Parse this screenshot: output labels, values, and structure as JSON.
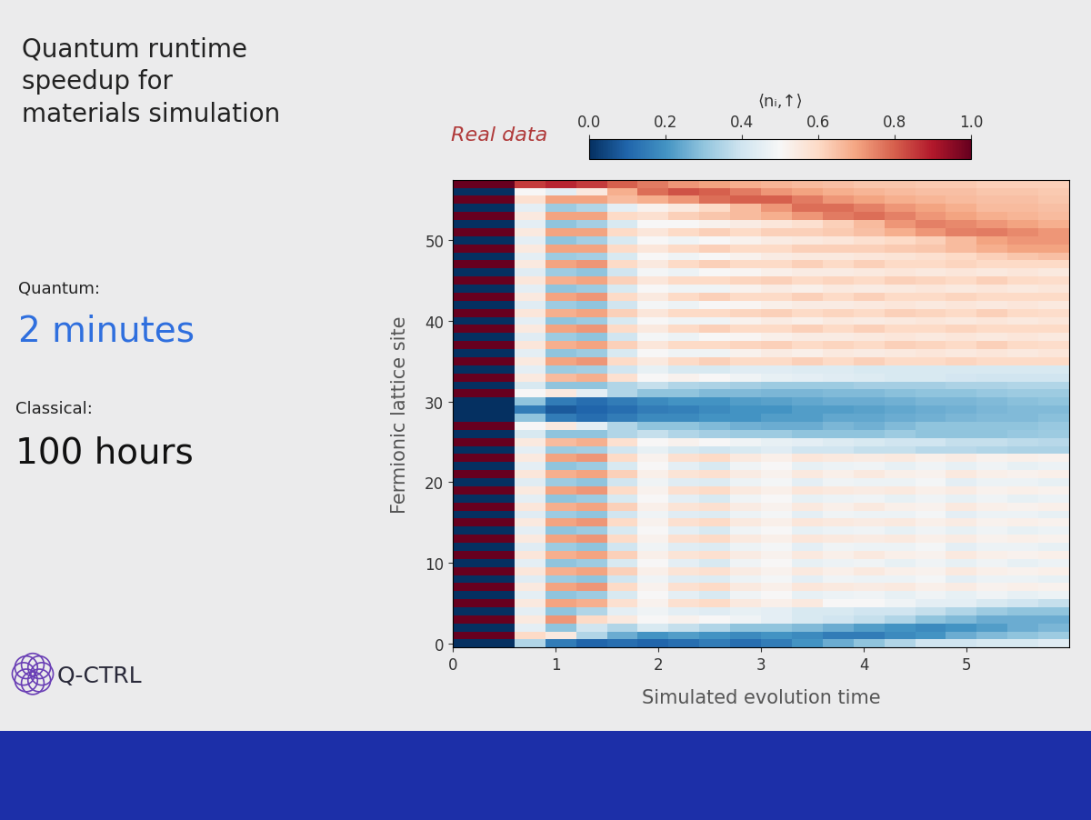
{
  "slide": {
    "title": "Quantum runtime\nspeedup for\nmaterials simulation",
    "quantum_label": "Quantum:",
    "quantum_value": "2 minutes",
    "classical_label": "Classical:",
    "classical_value": "100 hours",
    "logo": "Q-CTRL"
  },
  "chart_data": {
    "type": "heatmap",
    "annotation": "Real data",
    "x_label": "Simulated evolution time",
    "y_label": "Fermionic lattice site",
    "x": [
      0.15,
      0.45,
      0.75,
      1.05,
      1.35,
      1.65,
      1.95,
      2.25,
      2.55,
      2.85,
      3.15,
      3.45,
      3.75,
      4.05,
      4.35,
      4.65,
      4.95,
      5.25,
      5.55,
      5.85
    ],
    "y": [
      0,
      1,
      2,
      3,
      4,
      5,
      6,
      7,
      8,
      9,
      10,
      11,
      12,
      13,
      14,
      15,
      16,
      17,
      18,
      19,
      20,
      21,
      22,
      23,
      24,
      25,
      26,
      27,
      28,
      29,
      30,
      31,
      32,
      33,
      34,
      35,
      36,
      37,
      38,
      39,
      40,
      41,
      42,
      43,
      44,
      45,
      46,
      47,
      48,
      49,
      50,
      51,
      52,
      53,
      54,
      55,
      56,
      57
    ],
    "xlim": [
      0,
      6
    ],
    "ylim": [
      -0.5,
      57.5
    ],
    "xticks": [
      0,
      1,
      2,
      3,
      4,
      5
    ],
    "yticks": [
      0,
      10,
      20,
      30,
      40,
      50
    ],
    "colorbar": {
      "label": "⟨nᵢ,↑⟩",
      "range": [
        0,
        1
      ],
      "ticks": [
        0.0,
        0.2,
        0.4,
        0.6,
        0.8,
        1.0
      ]
    },
    "cells": [
      [
        0,
        0,
        0.35,
        0.15,
        0.1,
        0.12,
        0.1,
        0.12,
        0.15,
        0.12,
        0.15,
        0.2,
        0.25,
        0.3,
        0.35,
        0.4,
        0.4,
        0.42,
        0.42,
        0.44
      ],
      [
        1,
        1,
        0.6,
        0.55,
        0.35,
        0.25,
        0.2,
        0.22,
        0.2,
        0.18,
        0.2,
        0.18,
        0.15,
        0.15,
        0.18,
        0.2,
        0.25,
        0.28,
        0.3,
        0.32
      ],
      [
        0,
        0,
        0.45,
        0.3,
        0.4,
        0.35,
        0.42,
        0.38,
        0.35,
        0.3,
        0.3,
        0.28,
        0.25,
        0.22,
        0.2,
        0.18,
        0.2,
        0.22,
        0.25,
        0.27
      ],
      [
        1,
        1,
        0.55,
        0.72,
        0.6,
        0.55,
        0.5,
        0.52,
        0.5,
        0.48,
        0.45,
        0.42,
        0.4,
        0.38,
        0.35,
        0.3,
        0.28,
        0.25,
        0.25,
        0.25
      ],
      [
        0,
        0,
        0.45,
        0.3,
        0.35,
        0.45,
        0.48,
        0.45,
        0.44,
        0.46,
        0.45,
        0.42,
        0.42,
        0.4,
        0.4,
        0.38,
        0.35,
        0.32,
        0.3,
        0.3
      ],
      [
        1,
        1,
        0.55,
        0.7,
        0.68,
        0.58,
        0.52,
        0.58,
        0.6,
        0.55,
        0.53,
        0.55,
        0.5,
        0.5,
        0.48,
        0.45,
        0.45,
        0.42,
        0.4,
        0.38
      ],
      [
        0,
        0,
        0.45,
        0.3,
        0.32,
        0.42,
        0.5,
        0.45,
        0.42,
        0.48,
        0.5,
        0.46,
        0.47,
        0.48,
        0.46,
        0.48,
        0.46,
        0.48,
        0.46,
        0.47
      ],
      [
        1,
        1,
        0.55,
        0.7,
        0.72,
        0.6,
        0.52,
        0.58,
        0.6,
        0.55,
        0.53,
        0.56,
        0.55,
        0.54,
        0.55,
        0.53,
        0.54,
        0.52,
        0.53,
        0.52
      ],
      [
        0,
        0,
        0.44,
        0.32,
        0.3,
        0.4,
        0.48,
        0.44,
        0.43,
        0.47,
        0.49,
        0.45,
        0.48,
        0.47,
        0.47,
        0.49,
        0.45,
        0.47,
        0.47,
        0.46
      ],
      [
        1,
        1,
        0.56,
        0.68,
        0.7,
        0.62,
        0.53,
        0.57,
        0.58,
        0.54,
        0.52,
        0.55,
        0.53,
        0.55,
        0.53,
        0.52,
        0.55,
        0.53,
        0.52,
        0.53
      ],
      [
        0,
        0,
        0.45,
        0.3,
        0.32,
        0.42,
        0.5,
        0.45,
        0.42,
        0.48,
        0.5,
        0.46,
        0.47,
        0.48,
        0.46,
        0.48,
        0.46,
        0.48,
        0.46,
        0.47
      ],
      [
        1,
        1,
        0.56,
        0.68,
        0.7,
        0.62,
        0.53,
        0.57,
        0.58,
        0.54,
        0.52,
        0.55,
        0.53,
        0.55,
        0.53,
        0.52,
        0.55,
        0.53,
        0.52,
        0.53
      ],
      [
        0,
        0,
        0.44,
        0.32,
        0.3,
        0.4,
        0.48,
        0.44,
        0.43,
        0.47,
        0.49,
        0.45,
        0.48,
        0.47,
        0.47,
        0.49,
        0.45,
        0.47,
        0.47,
        0.46
      ],
      [
        1,
        1,
        0.55,
        0.7,
        0.72,
        0.6,
        0.52,
        0.58,
        0.6,
        0.55,
        0.53,
        0.56,
        0.55,
        0.54,
        0.55,
        0.53,
        0.54,
        0.52,
        0.53,
        0.52
      ],
      [
        0,
        0,
        0.45,
        0.3,
        0.32,
        0.42,
        0.5,
        0.45,
        0.42,
        0.48,
        0.5,
        0.46,
        0.47,
        0.48,
        0.46,
        0.48,
        0.46,
        0.48,
        0.46,
        0.47
      ],
      [
        1,
        1,
        0.55,
        0.7,
        0.72,
        0.6,
        0.52,
        0.58,
        0.6,
        0.55,
        0.53,
        0.56,
        0.55,
        0.54,
        0.55,
        0.53,
        0.54,
        0.52,
        0.53,
        0.52
      ],
      [
        0,
        0,
        0.44,
        0.32,
        0.3,
        0.4,
        0.48,
        0.44,
        0.43,
        0.47,
        0.49,
        0.45,
        0.48,
        0.47,
        0.47,
        0.49,
        0.45,
        0.47,
        0.47,
        0.46
      ],
      [
        1,
        1,
        0.56,
        0.68,
        0.7,
        0.62,
        0.53,
        0.57,
        0.58,
        0.54,
        0.52,
        0.55,
        0.53,
        0.55,
        0.53,
        0.52,
        0.55,
        0.53,
        0.52,
        0.53
      ],
      [
        0,
        0,
        0.45,
        0.3,
        0.32,
        0.42,
        0.5,
        0.45,
        0.42,
        0.48,
        0.5,
        0.46,
        0.47,
        0.48,
        0.46,
        0.48,
        0.46,
        0.48,
        0.46,
        0.47
      ],
      [
        1,
        1,
        0.55,
        0.7,
        0.72,
        0.6,
        0.52,
        0.58,
        0.6,
        0.55,
        0.53,
        0.56,
        0.55,
        0.54,
        0.55,
        0.53,
        0.54,
        0.52,
        0.53,
        0.52
      ],
      [
        0,
        0,
        0.44,
        0.32,
        0.3,
        0.4,
        0.48,
        0.44,
        0.43,
        0.47,
        0.49,
        0.45,
        0.48,
        0.47,
        0.47,
        0.49,
        0.45,
        0.47,
        0.47,
        0.46
      ],
      [
        1,
        1,
        0.56,
        0.68,
        0.7,
        0.62,
        0.53,
        0.57,
        0.58,
        0.54,
        0.52,
        0.55,
        0.53,
        0.55,
        0.53,
        0.52,
        0.55,
        0.53,
        0.52,
        0.53
      ],
      [
        0,
        0,
        0.45,
        0.3,
        0.32,
        0.42,
        0.5,
        0.45,
        0.42,
        0.48,
        0.5,
        0.46,
        0.47,
        0.48,
        0.46,
        0.48,
        0.46,
        0.48,
        0.46,
        0.47
      ],
      [
        1,
        1,
        0.55,
        0.7,
        0.72,
        0.6,
        0.52,
        0.58,
        0.6,
        0.55,
        0.53,
        0.56,
        0.55,
        0.54,
        0.55,
        0.53,
        0.54,
        0.52,
        0.53,
        0.52
      ],
      [
        0,
        0,
        0.45,
        0.32,
        0.33,
        0.4,
        0.46,
        0.42,
        0.4,
        0.42,
        0.44,
        0.4,
        0.4,
        0.38,
        0.38,
        0.36,
        0.36,
        0.35,
        0.34,
        0.34
      ],
      [
        1,
        1,
        0.55,
        0.66,
        0.68,
        0.58,
        0.5,
        0.52,
        0.5,
        0.48,
        0.46,
        0.45,
        0.43,
        0.42,
        0.4,
        0.4,
        0.38,
        0.38,
        0.37,
        0.36
      ],
      [
        0,
        0,
        0.42,
        0.3,
        0.3,
        0.35,
        0.38,
        0.35,
        0.33,
        0.32,
        0.32,
        0.3,
        0.3,
        0.3,
        0.32,
        0.3,
        0.3,
        0.3,
        0.31,
        0.32
      ],
      [
        1,
        1,
        0.5,
        0.55,
        0.45,
        0.35,
        0.3,
        0.3,
        0.28,
        0.26,
        0.25,
        0.25,
        0.27,
        0.26,
        0.28,
        0.3,
        0.3,
        0.3,
        0.3,
        0.31
      ],
      [
        0,
        0,
        0.3,
        0.15,
        0.12,
        0.15,
        0.18,
        0.18,
        0.2,
        0.2,
        0.22,
        0.22,
        0.24,
        0.24,
        0.25,
        0.26,
        0.27,
        0.28,
        0.28,
        0.29
      ],
      [
        0,
        0,
        0.15,
        0.08,
        0.1,
        0.12,
        0.15,
        0.16,
        0.18,
        0.2,
        0.2,
        0.22,
        0.22,
        0.23,
        0.24,
        0.25,
        0.26,
        0.27,
        0.28,
        0.28
      ],
      [
        0,
        0,
        0.3,
        0.15,
        0.12,
        0.15,
        0.18,
        0.2,
        0.2,
        0.22,
        0.23,
        0.24,
        0.25,
        0.25,
        0.26,
        0.27,
        0.27,
        0.28,
        0.29,
        0.3
      ],
      [
        1,
        1,
        0.5,
        0.55,
        0.45,
        0.35,
        0.3,
        0.3,
        0.28,
        0.28,
        0.27,
        0.27,
        0.28,
        0.28,
        0.29,
        0.3,
        0.3,
        0.31,
        0.32,
        0.32
      ],
      [
        0,
        0,
        0.42,
        0.3,
        0.3,
        0.35,
        0.38,
        0.35,
        0.34,
        0.33,
        0.32,
        0.32,
        0.32,
        0.33,
        0.33,
        0.33,
        0.34,
        0.34,
        0.35,
        0.35
      ],
      [
        1,
        1,
        0.55,
        0.66,
        0.68,
        0.58,
        0.5,
        0.52,
        0.5,
        0.48,
        0.46,
        0.45,
        0.44,
        0.43,
        0.42,
        0.42,
        0.41,
        0.4,
        0.4,
        0.4
      ],
      [
        0,
        0,
        0.45,
        0.32,
        0.33,
        0.4,
        0.46,
        0.42,
        0.42,
        0.44,
        0.44,
        0.43,
        0.43,
        0.42,
        0.42,
        0.42,
        0.42,
        0.42,
        0.42,
        0.42
      ],
      [
        1,
        1,
        0.55,
        0.7,
        0.72,
        0.6,
        0.55,
        0.6,
        0.62,
        0.6,
        0.6,
        0.62,
        0.6,
        0.62,
        0.6,
        0.6,
        0.61,
        0.6,
        0.6,
        0.6
      ],
      [
        0,
        0,
        0.45,
        0.3,
        0.32,
        0.42,
        0.5,
        0.48,
        0.48,
        0.52,
        0.54,
        0.53,
        0.55,
        0.54,
        0.55,
        0.56,
        0.55,
        0.56,
        0.55,
        0.56
      ],
      [
        1,
        1,
        0.56,
        0.68,
        0.7,
        0.62,
        0.56,
        0.6,
        0.6,
        0.61,
        0.62,
        0.6,
        0.61,
        0.6,
        0.62,
        0.61,
        0.6,
        0.62,
        0.6,
        0.59
      ],
      [
        0,
        0,
        0.44,
        0.32,
        0.3,
        0.4,
        0.49,
        0.47,
        0.5,
        0.51,
        0.53,
        0.54,
        0.54,
        0.55,
        0.56,
        0.55,
        0.56,
        0.55,
        0.56,
        0.55
      ],
      [
        1,
        1,
        0.55,
        0.7,
        0.72,
        0.6,
        0.55,
        0.6,
        0.62,
        0.6,
        0.6,
        0.62,
        0.6,
        0.62,
        0.6,
        0.6,
        0.61,
        0.6,
        0.6,
        0.6
      ],
      [
        0,
        0,
        0.45,
        0.3,
        0.32,
        0.42,
        0.5,
        0.48,
        0.48,
        0.52,
        0.54,
        0.53,
        0.55,
        0.54,
        0.55,
        0.56,
        0.55,
        0.56,
        0.55,
        0.56
      ],
      [
        1,
        1,
        0.56,
        0.68,
        0.7,
        0.62,
        0.56,
        0.6,
        0.6,
        0.61,
        0.62,
        0.6,
        0.61,
        0.6,
        0.62,
        0.61,
        0.6,
        0.62,
        0.6,
        0.59
      ],
      [
        0,
        0,
        0.44,
        0.32,
        0.3,
        0.4,
        0.49,
        0.47,
        0.5,
        0.51,
        0.53,
        0.54,
        0.54,
        0.55,
        0.56,
        0.55,
        0.56,
        0.55,
        0.56,
        0.55
      ],
      [
        1,
        1,
        0.55,
        0.7,
        0.72,
        0.6,
        0.55,
        0.6,
        0.62,
        0.6,
        0.6,
        0.62,
        0.6,
        0.62,
        0.6,
        0.6,
        0.61,
        0.6,
        0.6,
        0.6
      ],
      [
        0,
        0,
        0.45,
        0.3,
        0.32,
        0.42,
        0.5,
        0.48,
        0.48,
        0.52,
        0.54,
        0.53,
        0.55,
        0.54,
        0.55,
        0.56,
        0.55,
        0.56,
        0.55,
        0.56
      ],
      [
        1,
        1,
        0.56,
        0.68,
        0.7,
        0.62,
        0.56,
        0.6,
        0.6,
        0.61,
        0.62,
        0.6,
        0.61,
        0.6,
        0.62,
        0.61,
        0.6,
        0.62,
        0.6,
        0.59
      ],
      [
        0,
        0,
        0.44,
        0.32,
        0.3,
        0.4,
        0.49,
        0.47,
        0.5,
        0.51,
        0.53,
        0.54,
        0.54,
        0.55,
        0.56,
        0.55,
        0.56,
        0.55,
        0.56,
        0.55
      ],
      [
        1,
        1,
        0.55,
        0.7,
        0.72,
        0.6,
        0.55,
        0.6,
        0.62,
        0.6,
        0.6,
        0.62,
        0.6,
        0.62,
        0.6,
        0.6,
        0.61,
        0.6,
        0.6,
        0.6
      ],
      [
        0,
        0,
        0.45,
        0.32,
        0.33,
        0.42,
        0.5,
        0.48,
        0.5,
        0.52,
        0.54,
        0.55,
        0.55,
        0.56,
        0.57,
        0.58,
        0.6,
        0.62,
        0.64,
        0.65
      ],
      [
        1,
        1,
        0.55,
        0.7,
        0.7,
        0.6,
        0.56,
        0.6,
        0.62,
        0.6,
        0.6,
        0.62,
        0.62,
        0.62,
        0.63,
        0.64,
        0.66,
        0.68,
        0.7,
        0.7
      ],
      [
        0,
        0,
        0.45,
        0.3,
        0.33,
        0.42,
        0.5,
        0.48,
        0.5,
        0.52,
        0.54,
        0.55,
        0.56,
        0.58,
        0.6,
        0.62,
        0.66,
        0.7,
        0.72,
        0.72
      ],
      [
        1,
        1,
        0.55,
        0.7,
        0.7,
        0.6,
        0.56,
        0.6,
        0.62,
        0.6,
        0.62,
        0.62,
        0.63,
        0.65,
        0.68,
        0.72,
        0.75,
        0.76,
        0.74,
        0.72
      ],
      [
        0,
        0,
        0.45,
        0.3,
        0.33,
        0.42,
        0.5,
        0.5,
        0.52,
        0.54,
        0.56,
        0.58,
        0.62,
        0.66,
        0.72,
        0.75,
        0.74,
        0.72,
        0.7,
        0.68
      ],
      [
        1,
        1,
        0.55,
        0.7,
        0.7,
        0.6,
        0.58,
        0.62,
        0.64,
        0.66,
        0.68,
        0.72,
        0.76,
        0.78,
        0.75,
        0.72,
        0.7,
        0.68,
        0.67,
        0.66
      ],
      [
        0,
        0,
        0.45,
        0.32,
        0.35,
        0.45,
        0.52,
        0.55,
        0.6,
        0.66,
        0.72,
        0.78,
        0.78,
        0.75,
        0.72,
        0.7,
        0.68,
        0.66,
        0.66,
        0.65
      ],
      [
        1,
        1,
        0.58,
        0.7,
        0.7,
        0.66,
        0.68,
        0.72,
        0.78,
        0.8,
        0.8,
        0.76,
        0.72,
        0.7,
        0.68,
        0.67,
        0.66,
        0.65,
        0.65,
        0.64
      ],
      [
        0,
        0,
        0.5,
        0.45,
        0.55,
        0.68,
        0.78,
        0.82,
        0.8,
        0.76,
        0.72,
        0.7,
        0.68,
        0.67,
        0.66,
        0.65,
        0.65,
        0.64,
        0.64,
        0.63
      ],
      [
        1,
        1,
        0.85,
        0.88,
        0.85,
        0.8,
        0.76,
        0.72,
        0.7,
        0.68,
        0.67,
        0.66,
        0.65,
        0.64,
        0.64,
        0.63,
        0.63,
        0.62,
        0.62,
        0.62
      ]
    ]
  }
}
